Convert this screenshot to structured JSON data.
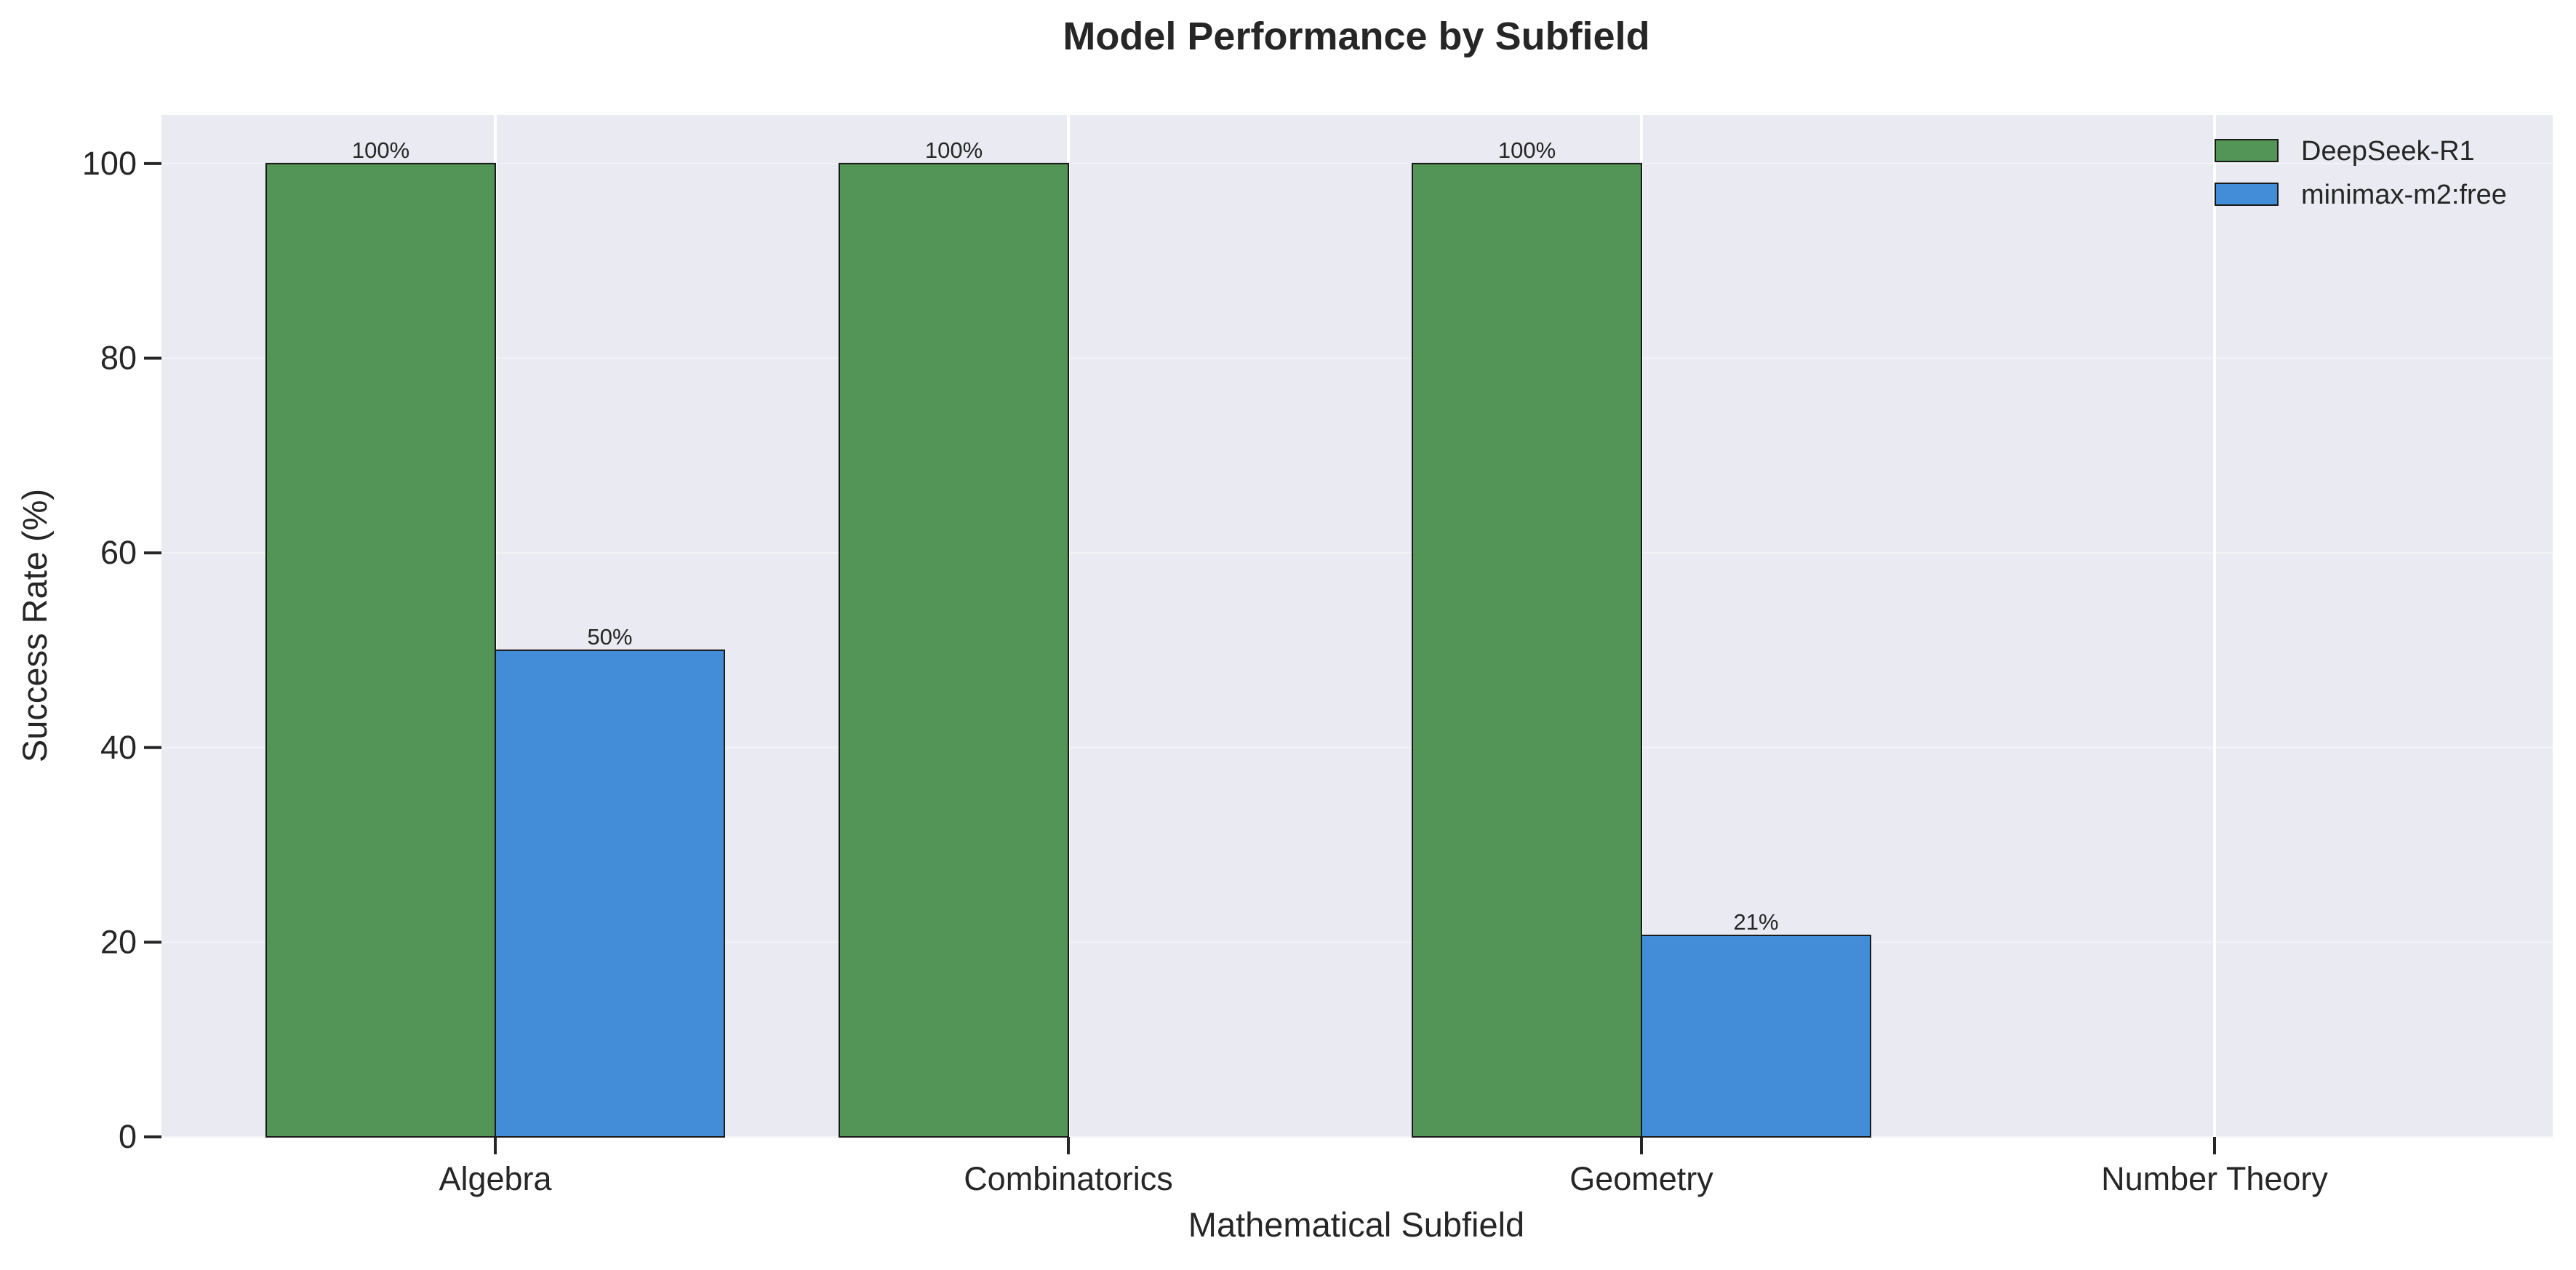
{
  "chart_data": {
    "type": "bar",
    "title": "Model Performance by Subfield",
    "xlabel": "Mathematical Subfield",
    "ylabel": "Success Rate (%)",
    "categories": [
      "Algebra",
      "Combinatorics",
      "Geometry",
      "Number Theory"
    ],
    "series": [
      {
        "name": "DeepSeek-R1",
        "color": "#529557",
        "values": [
          100,
          100,
          100,
          0
        ],
        "labels": [
          "100%",
          "100%",
          "100%",
          ""
        ]
      },
      {
        "name": "minimax-m2:free",
        "color": "#428cd8",
        "values": [
          50,
          0,
          20.7,
          0
        ],
        "labels": [
          "50%",
          "",
          "21%",
          ""
        ]
      }
    ],
    "ylim": [
      0,
      105
    ],
    "yticks": [
      0,
      20,
      40,
      60,
      80,
      100
    ],
    "grid": true,
    "legend_position": "top-right",
    "plot_background": "#eaeaf2"
  }
}
